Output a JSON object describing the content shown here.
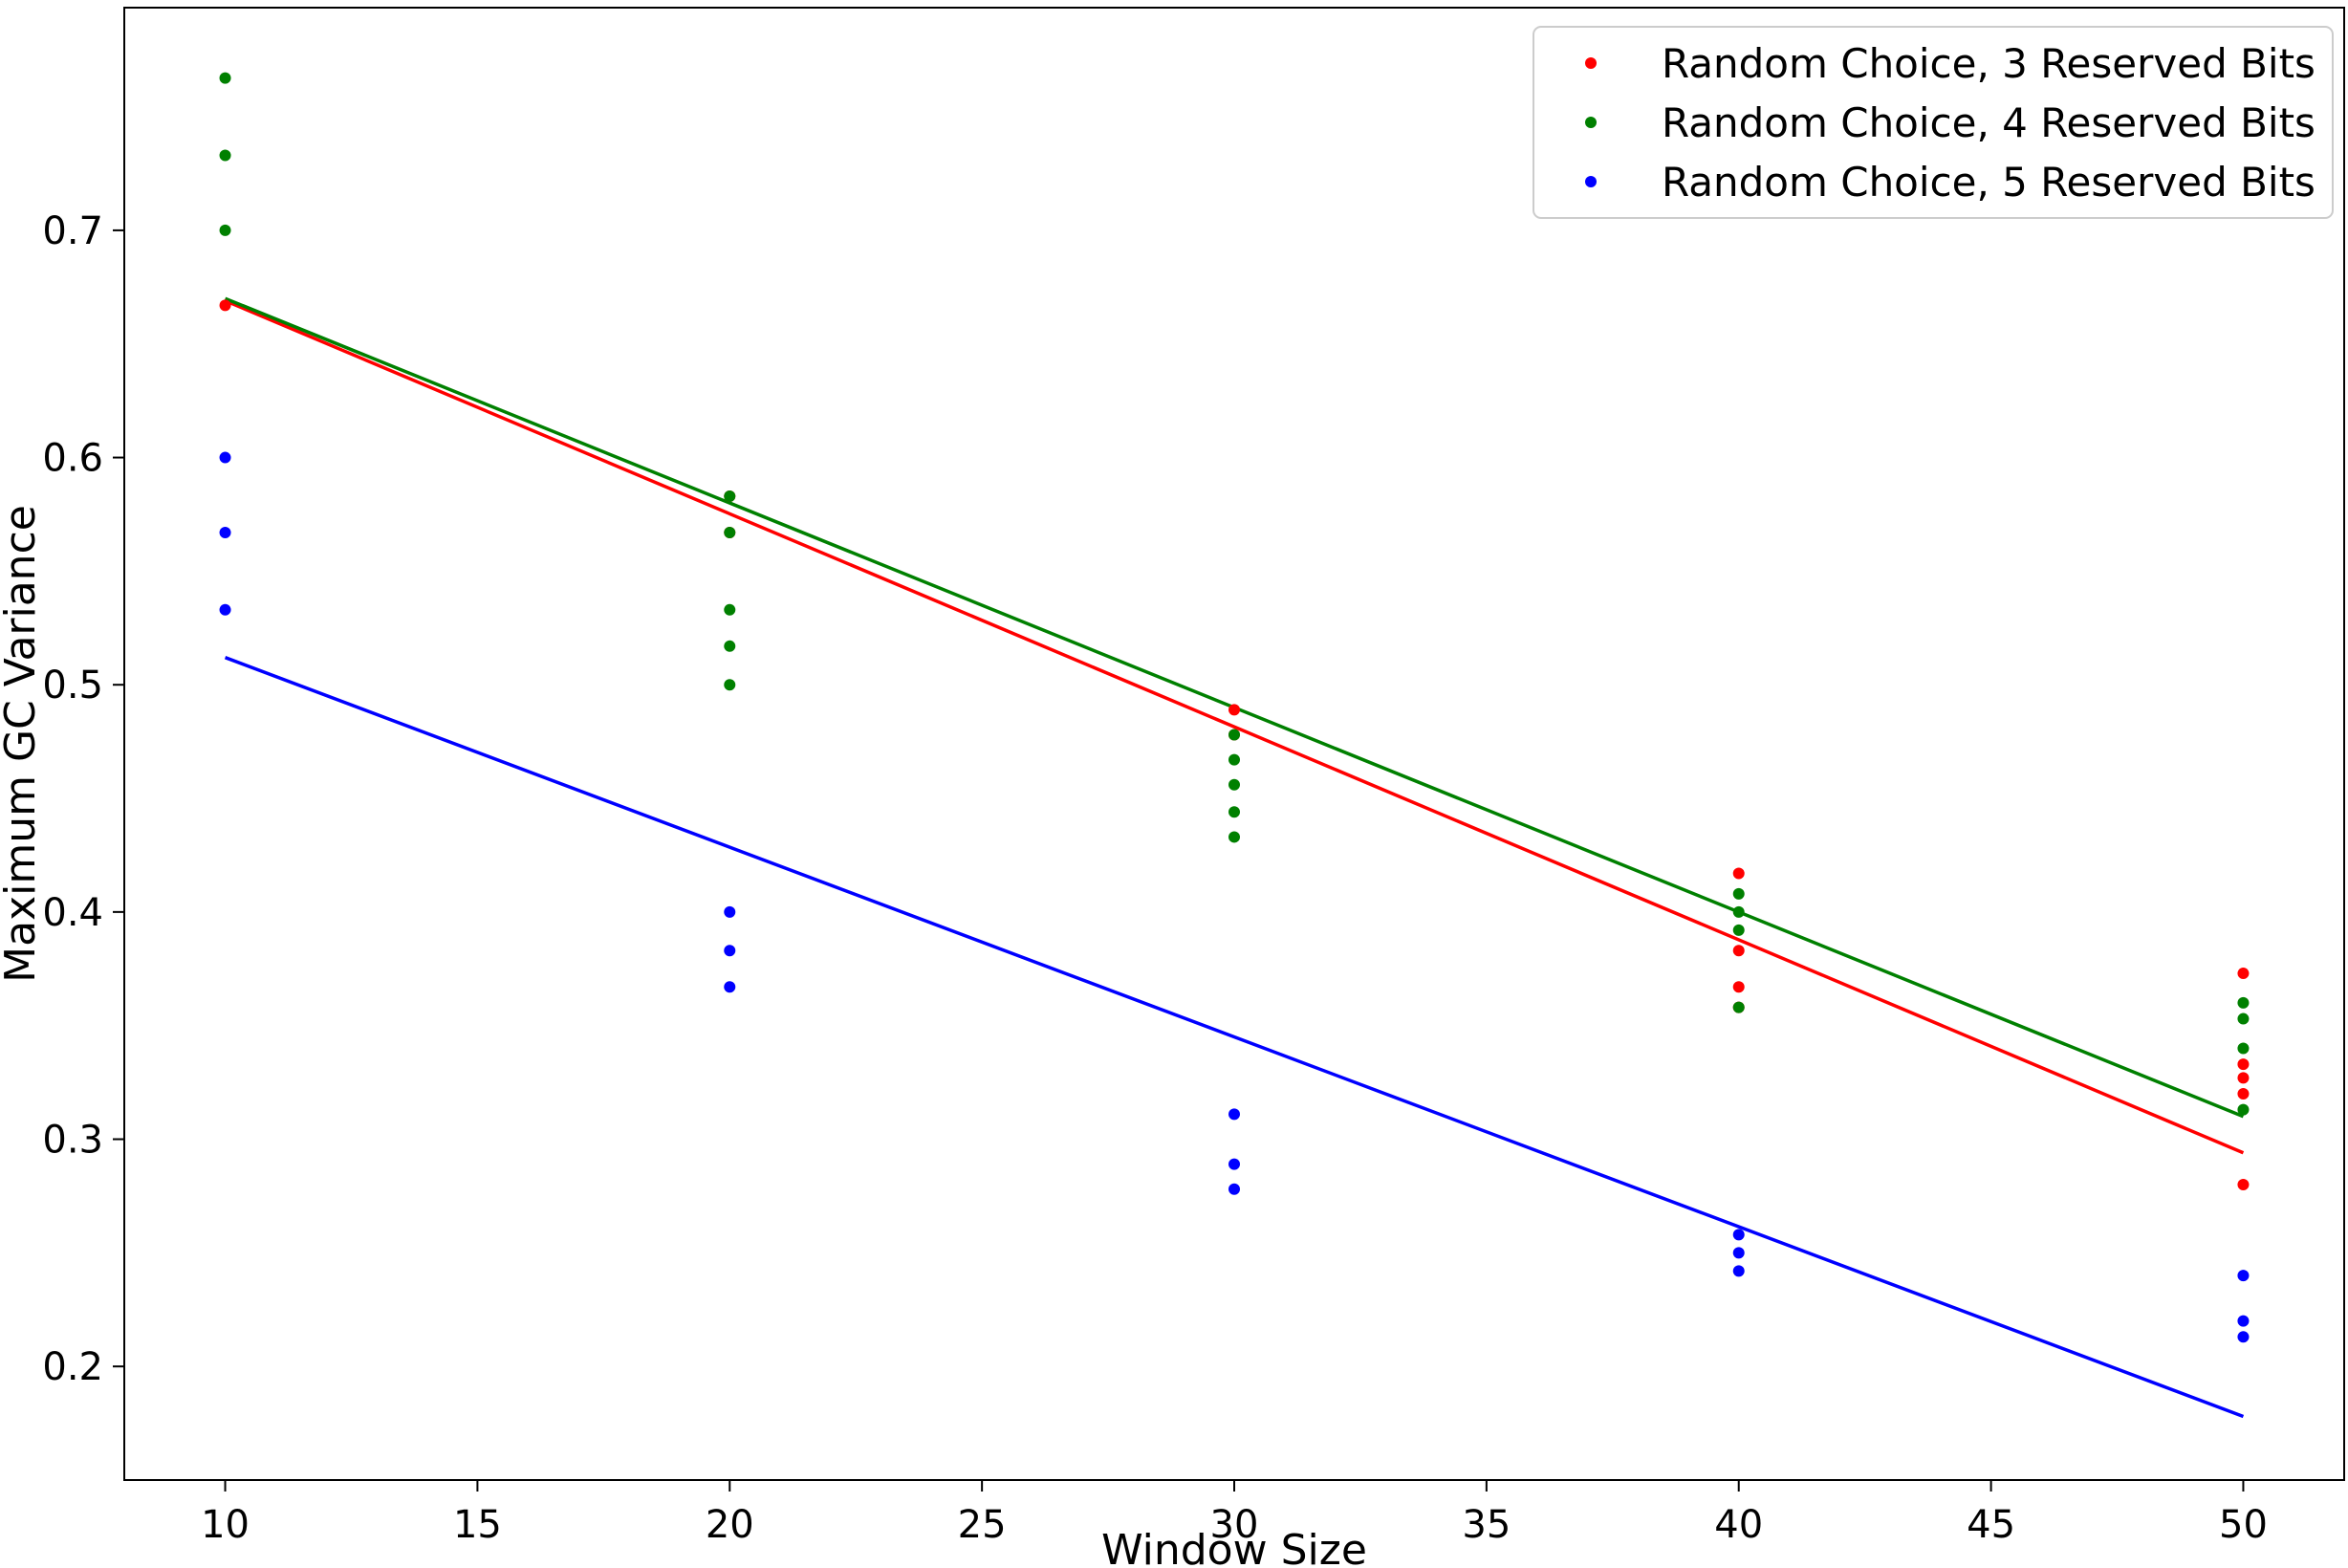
{
  "chart_data": {
    "type": "scatter",
    "title": "",
    "xlabel": "Window Size",
    "ylabel": "Maximum GC Variance",
    "xlim": [
      8,
      52
    ],
    "ylim": [
      0.15,
      0.798
    ],
    "xticks": [
      10,
      15,
      20,
      25,
      30,
      35,
      40,
      45,
      50
    ],
    "yticks": [
      0.2,
      0.3,
      0.4,
      0.5,
      0.6,
      0.7
    ],
    "xtick_labels": [
      "10",
      "15",
      "20",
      "25",
      "30",
      "35",
      "40",
      "45",
      "50"
    ],
    "ytick_labels": [
      "0.2",
      "0.3",
      "0.4",
      "0.5",
      "0.6",
      "0.7"
    ],
    "grid": false,
    "legend_position": "top-right",
    "series": [
      {
        "name": "Random Choice, 3 Reserved Bits",
        "color": "#ff0000",
        "points": [
          [
            10,
            0.667
          ],
          [
            20,
            0.583
          ],
          [
            20,
            0.567
          ],
          [
            30,
            0.489
          ],
          [
            30,
            0.478
          ],
          [
            40,
            0.417
          ],
          [
            40,
            0.383
          ],
          [
            40,
            0.367
          ],
          [
            40,
            0.358
          ],
          [
            50,
            0.373
          ],
          [
            50,
            0.333
          ],
          [
            50,
            0.327
          ],
          [
            50,
            0.32
          ],
          [
            50,
            0.28
          ]
        ],
        "trend": {
          "x": [
            10,
            50
          ],
          "y": [
            0.669,
            0.294
          ]
        }
      },
      {
        "name": "Random Choice, 4 Reserved Bits",
        "color": "#008000",
        "points": [
          [
            10,
            0.767
          ],
          [
            10,
            0.733
          ],
          [
            10,
            0.7
          ],
          [
            20,
            0.583
          ],
          [
            20,
            0.567
          ],
          [
            20,
            0.533
          ],
          [
            20,
            0.517
          ],
          [
            20,
            0.5
          ],
          [
            30,
            0.478
          ],
          [
            30,
            0.467
          ],
          [
            30,
            0.456
          ],
          [
            30,
            0.444
          ],
          [
            30,
            0.433
          ],
          [
            40,
            0.408
          ],
          [
            40,
            0.4
          ],
          [
            40,
            0.392
          ],
          [
            40,
            0.358
          ],
          [
            50,
            0.36
          ],
          [
            50,
            0.353
          ],
          [
            50,
            0.34
          ],
          [
            50,
            0.313
          ]
        ],
        "trend": {
          "x": [
            10,
            50
          ],
          "y": [
            0.67,
            0.31
          ]
        }
      },
      {
        "name": "Random Choice, 5 Reserved Bits",
        "color": "#0000ff",
        "points": [
          [
            10,
            0.6
          ],
          [
            10,
            0.567
          ],
          [
            10,
            0.533
          ],
          [
            20,
            0.4
          ],
          [
            20,
            0.383
          ],
          [
            20,
            0.367
          ],
          [
            30,
            0.311
          ],
          [
            30,
            0.289
          ],
          [
            30,
            0.278
          ],
          [
            40,
            0.258
          ],
          [
            40,
            0.25
          ],
          [
            40,
            0.242
          ],
          [
            50,
            0.24
          ],
          [
            50,
            0.22
          ],
          [
            50,
            0.213
          ]
        ],
        "trend": {
          "x": [
            10,
            50
          ],
          "y": [
            0.512,
            0.178
          ]
        }
      }
    ]
  }
}
